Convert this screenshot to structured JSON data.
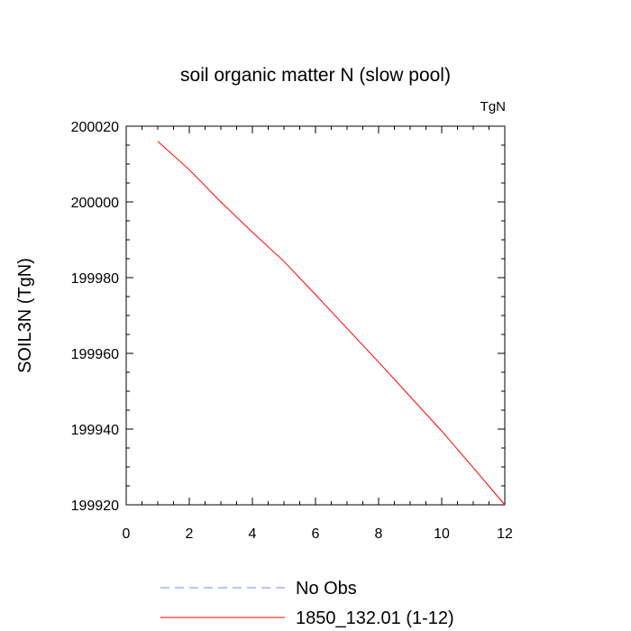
{
  "chart_data": {
    "type": "line",
    "title": "soil organic matter N (slow pool)",
    "units": "TgN",
    "ylabel": "SOIL3N  (TgN)",
    "xlabel": "",
    "xlim": [
      0,
      12
    ],
    "ylim": [
      199920,
      200020
    ],
    "xticks": [
      0,
      2,
      4,
      6,
      8,
      10,
      12
    ],
    "xtick_labels": [
      "0",
      "2",
      "4",
      "6",
      "8",
      "10",
      "12"
    ],
    "yticks": [
      199920,
      199940,
      199960,
      199980,
      200000,
      200020
    ],
    "ytick_labels": [
      "199920",
      "199940",
      "199960",
      "199980",
      "200000",
      "200020"
    ],
    "grid": false,
    "legend_position": "bottom",
    "series": [
      {
        "name": "No Obs",
        "color": "#8080ff",
        "dash": true,
        "x": [],
        "y": []
      },
      {
        "name": "1850_132.01 (1-12)",
        "color": "#ff0000",
        "dash": false,
        "x": [
          1,
          2,
          3,
          4,
          5,
          6,
          7,
          8,
          9,
          10,
          11,
          12
        ],
        "y": [
          200016,
          200008.5,
          200000,
          199992,
          199984.3,
          199975.5,
          199966.6,
          199957.7,
          199948.6,
          199939.5,
          199929.8,
          199920
        ]
      }
    ]
  }
}
